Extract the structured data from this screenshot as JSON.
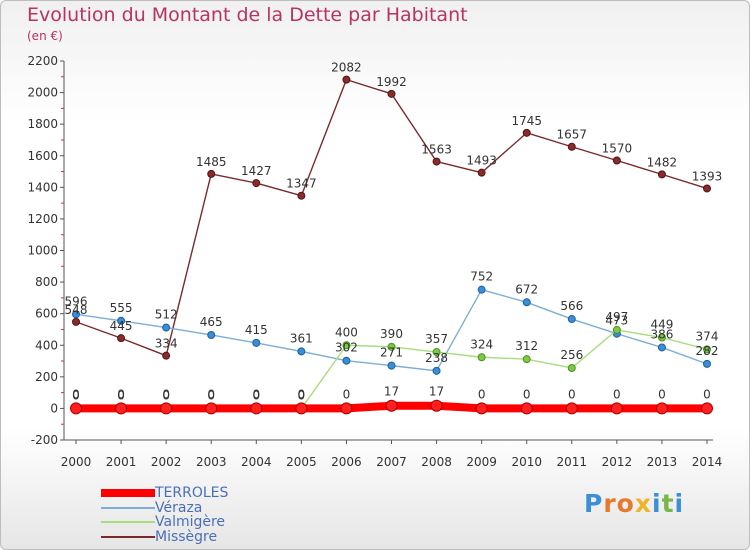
{
  "header": {
    "title": "Evolution du Montant de la Dette par Habitant",
    "subtitle": "(en €)"
  },
  "logo": {
    "text": "Proxiti",
    "letters": [
      "P",
      "r",
      "o",
      "x",
      "i",
      "t",
      "i"
    ],
    "colors": [
      "#3a8fd6",
      "#e8792b",
      "#e8792b",
      "#f0b428",
      "#3a8fd6",
      "#7ab648",
      "#3a8fd6"
    ]
  },
  "chart_data": {
    "type": "line",
    "title": "Evolution du Montant de la Dette par Habitant",
    "subtitle": "(en €)",
    "x": [
      "2000",
      "2001",
      "2002",
      "2003",
      "2004",
      "2005",
      "2006",
      "2007",
      "2008",
      "2009",
      "2010",
      "2011",
      "2012",
      "2013",
      "2014"
    ],
    "ylim": [
      -200,
      2200
    ],
    "yticks": [
      -200,
      0,
      200,
      400,
      600,
      800,
      1000,
      1200,
      1400,
      1600,
      1800,
      2000,
      2200
    ],
    "grid": false,
    "legend_position": "bottom-left",
    "series": [
      {
        "name": "Missègre",
        "color": "#7a2a2a",
        "values": [
          548,
          445,
          334,
          1485,
          1427,
          1347,
          2082,
          1992,
          1563,
          1493,
          1745,
          1657,
          1570,
          1482,
          1393
        ],
        "labels": [
          "548",
          "445",
          "334",
          "1485",
          "1427",
          "1347",
          "2082",
          "1992",
          "1563",
          "1493",
          "1745",
          "1657",
          "1570",
          "1482",
          "1393"
        ]
      },
      {
        "name": "Véraza",
        "color": "#5aa0d8",
        "values": [
          596,
          555,
          512,
          465,
          415,
          361,
          302,
          271,
          238,
          752,
          672,
          566,
          473,
          386,
          282
        ],
        "labels": [
          "596",
          "555",
          "512",
          "465",
          "415",
          "361",
          "302",
          "271",
          "238",
          "752",
          "672",
          "566",
          "473",
          "386",
          "282"
        ]
      },
      {
        "name": "Valmigère",
        "color": "#9edb6e",
        "values": [
          0,
          0,
          0,
          0,
          0,
          0,
          400,
          390,
          357,
          324,
          312,
          256,
          497,
          449,
          374
        ],
        "labels": [
          "0",
          "0",
          "0",
          "0",
          "0",
          "0",
          "400",
          "390",
          "357",
          "324",
          "312",
          "256",
          "497",
          "449",
          "374"
        ]
      },
      {
        "name": "TERROLES",
        "color": "#ff0000",
        "values": [
          0,
          0,
          0,
          0,
          0,
          0,
          0,
          17,
          17,
          0,
          0,
          0,
          0,
          0,
          0
        ],
        "labels": [
          "0",
          "0",
          "0",
          "0",
          "0",
          "0",
          "0",
          "17",
          "17",
          "0",
          "0",
          "0",
          "0",
          "0",
          "0"
        ]
      }
    ],
    "legend": [
      "TERROLES",
      "Véraza",
      "Valmigère",
      "Missègre"
    ]
  }
}
